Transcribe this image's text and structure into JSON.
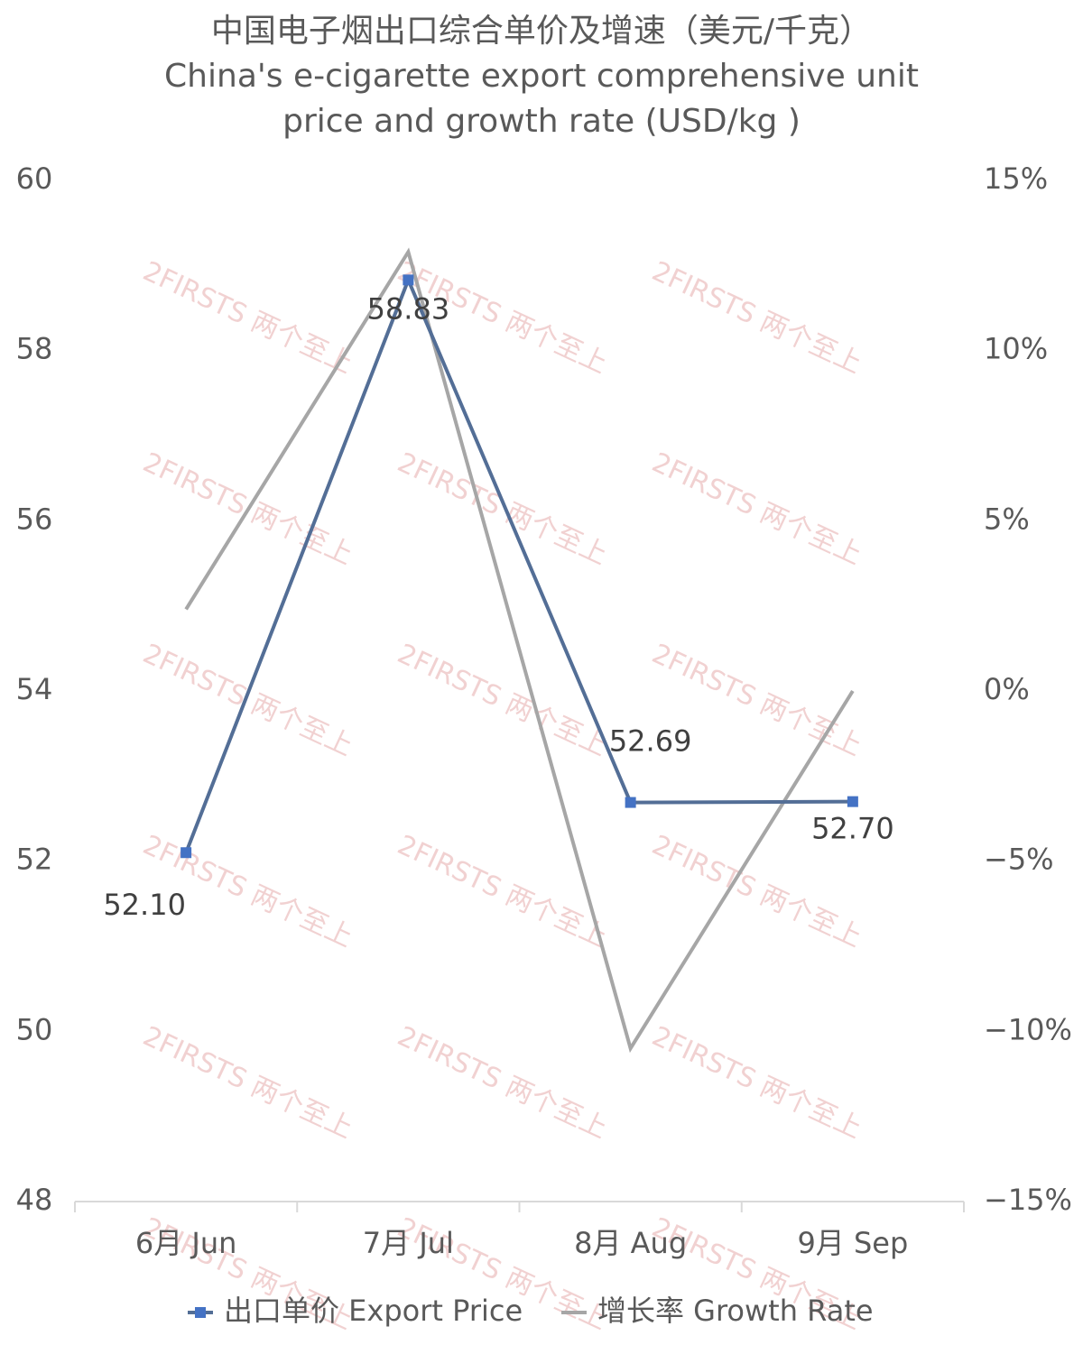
{
  "chart_data": {
    "type": "line",
    "title": "中国电子烟出口综合单价及增速（美元/千克）",
    "subtitle": [
      "China's e-cigarette export comprehensive unit",
      "price and growth rate (USD/kg )"
    ],
    "watermark": "2FIRSTS 两个至上",
    "categories": [
      "6月 Jun",
      "7月 Jul",
      "8月 Aug",
      "9月 Sep"
    ],
    "series": [
      {
        "name": "出口单价 Export Price",
        "color": "#536e96",
        "marker_color": "#4472c4",
        "values": [
          52.1,
          58.83,
          52.69,
          52.7
        ],
        "value_labels": [
          "52.10",
          "58.83",
          "52.69",
          "52.70"
        ]
      },
      {
        "name": "增长率 Growth Rate",
        "color": "#a6a6a6",
        "axis": "y2",
        "values": [
          2.4,
          12.9,
          -10.5,
          0.0
        ]
      }
    ],
    "ylim": [
      48,
      60
    ],
    "yticks": [
      48,
      50,
      52,
      54,
      56,
      58,
      60
    ],
    "y2lim": [
      -15,
      15
    ],
    "y2ticks": [
      {
        "value": -15,
        "label": "−15%"
      },
      {
        "value": -10,
        "label": "−10%"
      },
      {
        "value": -5,
        "label": "−5%"
      },
      {
        "value": 0,
        "label": "0%"
      },
      {
        "value": 5,
        "label": "5%"
      },
      {
        "value": 10,
        "label": "10%"
      },
      {
        "value": 15,
        "label": "15%"
      }
    ],
    "grid": false,
    "legend": "bottom"
  }
}
